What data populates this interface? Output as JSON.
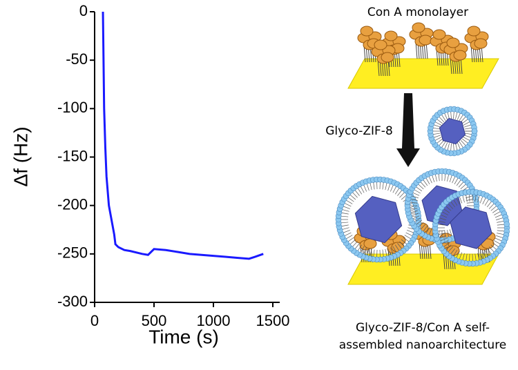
{
  "chart_data": {
    "type": "line",
    "x_label": "Time (s)",
    "y_label": "Δf (Hz)",
    "x": [
      70,
      75,
      80,
      90,
      100,
      120,
      150,
      165,
      175,
      200,
      250,
      300,
      400,
      450,
      500,
      600,
      700,
      800,
      900,
      1000,
      1100,
      1200,
      1300,
      1350,
      1420
    ],
    "series": [
      {
        "name": "Δf",
        "color": "#1a1aff",
        "values": [
          0,
          -50,
          -100,
          -140,
          -170,
          -200,
          -220,
          -230,
          -240,
          -243,
          -246,
          -247,
          -250,
          -251,
          -245,
          -246,
          -248,
          -250,
          -251,
          -252,
          -253,
          -254,
          -255,
          -253,
          -250
        ]
      }
    ],
    "xlim": [
      0,
      1500
    ],
    "xticks": [
      0,
      500,
      1000,
      1500
    ],
    "ylim": [
      -300,
      0
    ],
    "yticks": [
      -300,
      -250,
      -200,
      -150,
      -100,
      -50,
      0
    ]
  },
  "schematic": {
    "top_label": "Con A monolayer",
    "arrow_label": "Glyco-ZIF-8",
    "bottom_label": [
      "Glyco-ZIF-8/Con A self-",
      "assembled nanoarchitecture"
    ]
  }
}
